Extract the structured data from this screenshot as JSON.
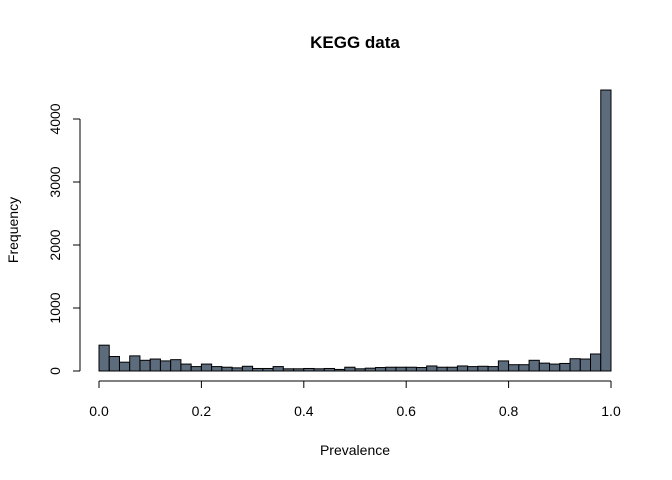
{
  "chart_data": {
    "type": "bar",
    "subtype": "histogram",
    "title": "KEGG data",
    "xlabel": "Prevalence",
    "ylabel": "Frequency",
    "xlim": [
      0,
      1
    ],
    "ylim": [
      0,
      4500
    ],
    "x_ticks": [
      0,
      0.2,
      0.4,
      0.6,
      0.8,
      1.0
    ],
    "x_tick_labels": [
      "0.0",
      "0.2",
      "0.4",
      "0.6",
      "0.8",
      "1.0"
    ],
    "y_ticks": [
      0,
      1000,
      2000,
      3000,
      4000
    ],
    "y_tick_labels": [
      "0",
      "1000",
      "2000",
      "3000",
      "4000"
    ],
    "bar_color": "#5d6c7d",
    "bin_width": 0.02,
    "bin_starts": [
      0.0,
      0.02,
      0.04,
      0.06,
      0.08,
      0.1,
      0.12,
      0.14,
      0.16,
      0.18,
      0.2,
      0.22,
      0.24,
      0.26,
      0.28,
      0.3,
      0.32,
      0.34,
      0.36,
      0.38,
      0.4,
      0.42,
      0.44,
      0.46,
      0.48,
      0.5,
      0.52,
      0.54,
      0.56,
      0.58,
      0.6,
      0.62,
      0.64,
      0.66,
      0.68,
      0.7,
      0.72,
      0.74,
      0.76,
      0.78,
      0.8,
      0.82,
      0.84,
      0.86,
      0.88,
      0.9,
      0.92,
      0.94,
      0.96,
      0.98
    ],
    "values": [
      410,
      230,
      140,
      240,
      170,
      190,
      160,
      180,
      110,
      70,
      110,
      70,
      60,
      50,
      75,
      40,
      40,
      70,
      35,
      35,
      40,
      35,
      40,
      25,
      60,
      35,
      45,
      55,
      60,
      60,
      60,
      55,
      80,
      60,
      60,
      80,
      70,
      75,
      70,
      160,
      100,
      100,
      170,
      125,
      110,
      120,
      195,
      190,
      270,
      4460
    ],
    "grid": false,
    "legend": "none"
  }
}
